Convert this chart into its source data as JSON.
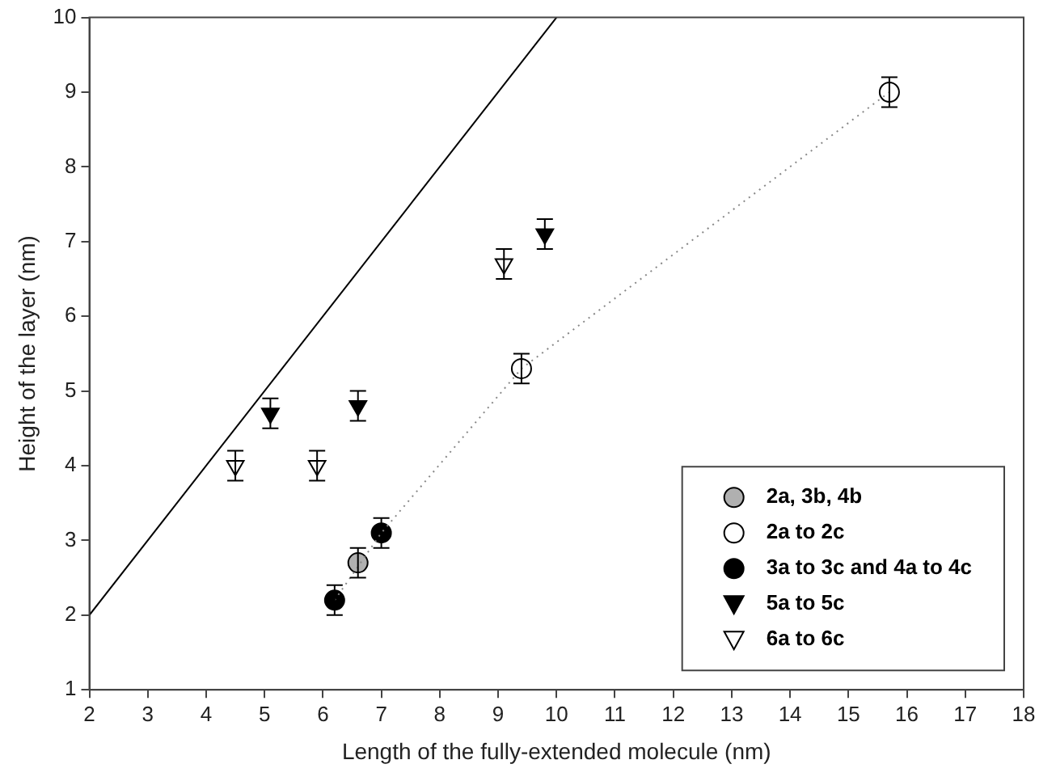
{
  "chart_data": {
    "type": "scatter",
    "xlabel": "Length of the fully-extended molecule (nm)",
    "ylabel": "Height of the layer (nm)",
    "xlim": [
      2,
      18
    ],
    "xticks": [
      2,
      3,
      4,
      5,
      6,
      7,
      8,
      9,
      10,
      11,
      12,
      13,
      14,
      15,
      16,
      17,
      18
    ],
    "ylim": [
      1,
      10
    ],
    "yticks": [
      1,
      2,
      3,
      4,
      5,
      6,
      7,
      8,
      9,
      10
    ],
    "grid": false,
    "legend": "bottom right",
    "series": [
      {
        "type": "line",
        "x": [
          2,
          10
        ],
        "values": [
          2,
          10
        ],
        "color": "#000000",
        "line_style": "solid",
        "marker": "none"
      },
      {
        "type": "line",
        "x": [
          6.2,
          7.0,
          9.4,
          15.7
        ],
        "values": [
          2.2,
          3.1,
          5.3,
          9.0
        ],
        "color": "#888888",
        "line_style": "dotted",
        "marker": "none"
      },
      {
        "name": "2a, 3b, 4b",
        "x": [
          6.6
        ],
        "values": [
          2.7
        ],
        "errors": [
          0.2
        ],
        "color": "#b0b0b0",
        "marker": "circle"
      },
      {
        "name": "2a to 2c",
        "x": [
          9.4,
          15.7
        ],
        "values": [
          5.3,
          9.0
        ],
        "errors": [
          0.2,
          0.2
        ],
        "color": "#ffffff",
        "marker": "circle"
      },
      {
        "name": "3a to 3c and 4a to 4c",
        "x": [
          6.2,
          7.0
        ],
        "values": [
          2.2,
          3.1
        ],
        "errors": [
          0.2,
          0.2
        ],
        "color": "#000000",
        "marker": "circle"
      },
      {
        "name": "5a to 5c",
        "x": [
          5.1,
          6.6,
          9.8
        ],
        "values": [
          4.7,
          4.8,
          7.1
        ],
        "errors": [
          0.2,
          0.2,
          0.2
        ],
        "color": "#000000",
        "marker": "triangle"
      },
      {
        "name": "6a to 6c",
        "x": [
          4.5,
          5.9,
          9.1
        ],
        "values": [
          4.0,
          4.0,
          6.7
        ],
        "errors": [
          0.2,
          0.2,
          0.2
        ],
        "color": "#ffffff",
        "marker": "triangle"
      }
    ]
  }
}
